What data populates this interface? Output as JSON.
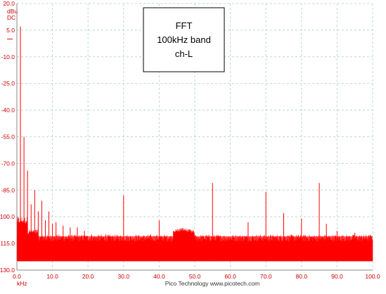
{
  "chart_data": {
    "type": "line",
    "annotation_lines": [
      "FFT",
      "100kHz band",
      "ch-L"
    ],
    "y_unit_top": "dBu",
    "y_unit_bottom": "DC",
    "x_unit": "kHz",
    "footer_text": "Pico Technology  www.picotech.com",
    "xlim": [
      0,
      100
    ],
    "ylim": [
      -130,
      20
    ],
    "x_tick_labels": [
      "0.0",
      "10.0",
      "20.0",
      "30.0",
      "40.0",
      "50.0",
      "60.0",
      "70.0",
      "80.0",
      "90.0",
      "100.0"
    ],
    "y_tick_labels": [
      "20.0",
      "5.0",
      "-10.0",
      "-25.0",
      "-40.0",
      "-55.0",
      "-70.0",
      "-85.0",
      "-100.0",
      "-115.0",
      "-130.0"
    ],
    "grid": true,
    "colors": {
      "trace": "#ff0000",
      "axis_text": "#cc0000",
      "grid": "#b8d8d8"
    },
    "noise_floor_dbu": {
      "low": -125,
      "high": -112
    },
    "harmonic_peaks": [
      {
        "x": 1.0,
        "y": 7
      },
      {
        "x": 2.0,
        "y": -55
      },
      {
        "x": 3.0,
        "y": -74
      },
      {
        "x": 4.0,
        "y": -93
      },
      {
        "x": 5.0,
        "y": -85
      },
      {
        "x": 6.0,
        "y": -97
      },
      {
        "x": 7.0,
        "y": -91
      },
      {
        "x": 8.0,
        "y": -102
      },
      {
        "x": 9.0,
        "y": -97
      },
      {
        "x": 10.0,
        "y": -104
      },
      {
        "x": 11.0,
        "y": -103
      },
      {
        "x": 13.0,
        "y": -105
      },
      {
        "x": 15.0,
        "y": -106
      },
      {
        "x": 17.0,
        "y": -106
      },
      {
        "x": 19.0,
        "y": -108
      },
      {
        "x": 21.0,
        "y": -110
      },
      {
        "x": 25.0,
        "y": -110
      },
      {
        "x": 27.0,
        "y": -111
      },
      {
        "x": 30.0,
        "y": -88
      },
      {
        "x": 35.0,
        "y": -112
      },
      {
        "x": 40.0,
        "y": -102
      },
      {
        "x": 44.0,
        "y": -108
      },
      {
        "x": 55.0,
        "y": -81
      },
      {
        "x": 65.0,
        "y": -103
      },
      {
        "x": 70.0,
        "y": -86
      },
      {
        "x": 75.0,
        "y": -98
      },
      {
        "x": 80.0,
        "y": -101
      },
      {
        "x": 85.0,
        "y": -81
      },
      {
        "x": 87.0,
        "y": -104
      },
      {
        "x": 90.0,
        "y": -108
      },
      {
        "x": 95.0,
        "y": -109
      }
    ]
  }
}
